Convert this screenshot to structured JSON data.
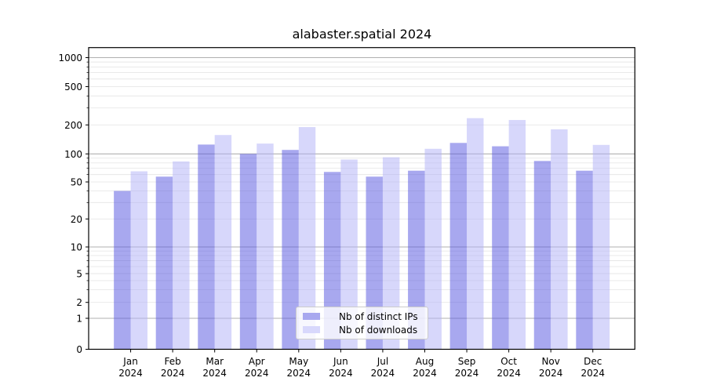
{
  "chart_data": {
    "type": "bar",
    "title": "alabaster.spatial 2024",
    "categories": [
      "Jan",
      "Feb",
      "Mar",
      "Apr",
      "May",
      "Jun",
      "Jul",
      "Aug",
      "Sep",
      "Oct",
      "Nov",
      "Dec"
    ],
    "category_year": "2024",
    "series": [
      {
        "name": "Nb of distinct IPs",
        "color": "#5858e0",
        "opacity": 0.52,
        "values": [
          40,
          57,
          125,
          100,
          110,
          64,
          57,
          66,
          130,
          120,
          84,
          66
        ]
      },
      {
        "name": "Nb of downloads",
        "color": "#b0b0f8",
        "opacity": 0.5,
        "values": [
          65,
          83,
          157,
          128,
          190,
          87,
          92,
          113,
          235,
          225,
          180,
          124
        ]
      }
    ],
    "yscale": "symlog",
    "yticks": [
      0,
      1,
      2,
      5,
      10,
      20,
      50,
      100,
      200,
      500,
      1000
    ],
    "ylim": [
      0,
      1280
    ],
    "grid": true,
    "major_grid_values": [
      1,
      10,
      100,
      1000
    ],
    "legend_position": "lower center",
    "colors": {
      "axis": "#000000",
      "major_grid": "#b0b0b0",
      "minor_grid": "#e7e7e7",
      "background": "#ffffff"
    }
  }
}
